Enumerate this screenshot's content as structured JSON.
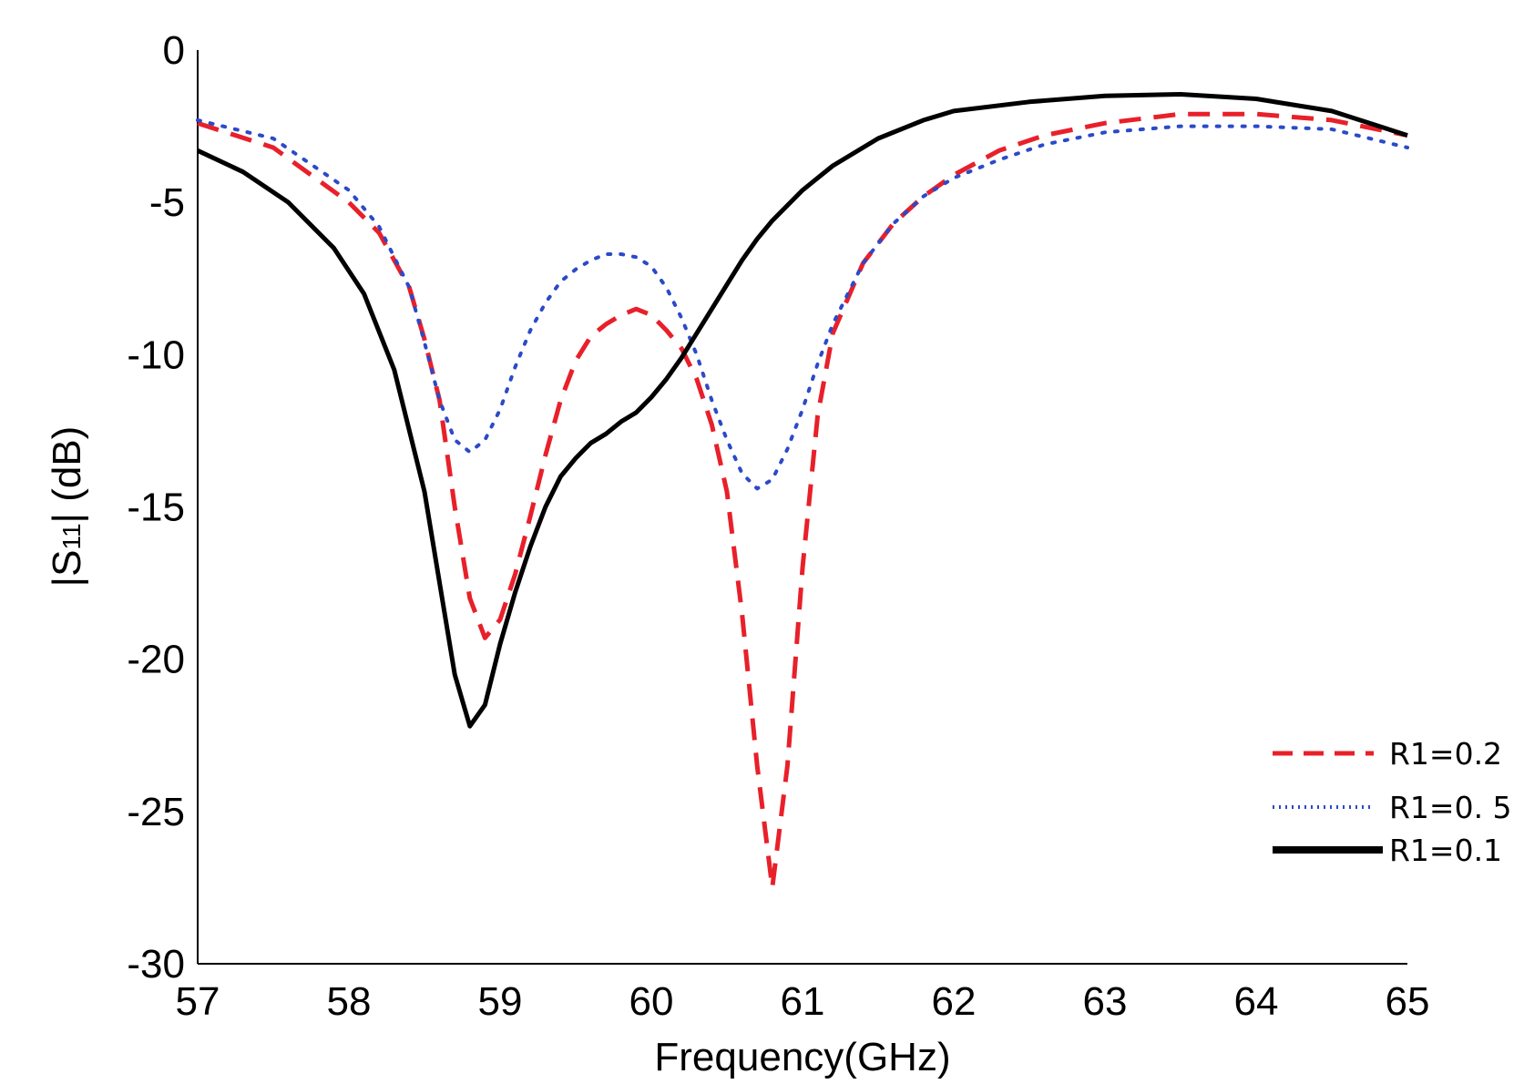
{
  "chart_data": {
    "type": "line",
    "title": "",
    "xlabel": "Frequency(GHz)",
    "ylabel_parts": {
      "before": "|S",
      "sub": "11",
      "after": "| (dB)"
    },
    "xlim": [
      57,
      65
    ],
    "ylim": [
      -30,
      0
    ],
    "x_ticks": [
      "57",
      "58",
      "59",
      "60",
      "61",
      "62",
      "63",
      "64",
      "65"
    ],
    "y_ticks": [
      "0",
      "-5",
      "-10",
      "-15",
      "-20",
      "-25",
      "-30"
    ],
    "legend_position": "bottom-right",
    "series": [
      {
        "name": "R1=0.2",
        "color": "#e8202a",
        "style": "dashed",
        "points": [
          [
            57.0,
            -2.4
          ],
          [
            57.5,
            -3.2
          ],
          [
            58.0,
            -5.0
          ],
          [
            58.2,
            -6.0
          ],
          [
            58.4,
            -7.8
          ],
          [
            58.5,
            -9.5
          ],
          [
            58.6,
            -11.5
          ],
          [
            58.7,
            -15.0
          ],
          [
            58.8,
            -18.0
          ],
          [
            58.9,
            -19.3
          ],
          [
            59.0,
            -18.7
          ],
          [
            59.1,
            -17.2
          ],
          [
            59.2,
            -15.3
          ],
          [
            59.3,
            -13.3
          ],
          [
            59.4,
            -11.5
          ],
          [
            59.5,
            -10.2
          ],
          [
            59.6,
            -9.4
          ],
          [
            59.7,
            -9.0
          ],
          [
            59.8,
            -8.7
          ],
          [
            59.9,
            -8.5
          ],
          [
            60.0,
            -8.7
          ],
          [
            60.1,
            -9.2
          ],
          [
            60.2,
            -9.8
          ],
          [
            60.3,
            -10.8
          ],
          [
            60.4,
            -12.3
          ],
          [
            60.5,
            -14.5
          ],
          [
            60.6,
            -18.5
          ],
          [
            60.7,
            -23.5
          ],
          [
            60.8,
            -27.5
          ],
          [
            60.9,
            -23.5
          ],
          [
            61.0,
            -17.0
          ],
          [
            61.1,
            -12.0
          ],
          [
            61.2,
            -9.3
          ],
          [
            61.4,
            -7.0
          ],
          [
            61.6,
            -5.7
          ],
          [
            61.8,
            -4.8
          ],
          [
            62.0,
            -4.1
          ],
          [
            62.3,
            -3.3
          ],
          [
            62.6,
            -2.8
          ],
          [
            63.0,
            -2.4
          ],
          [
            63.5,
            -2.1
          ],
          [
            64.0,
            -2.1
          ],
          [
            64.5,
            -2.3
          ],
          [
            65.0,
            -2.8
          ]
        ]
      },
      {
        "name": "R1=0. 5",
        "color": "#2b4ac8",
        "style": "dotted",
        "points": [
          [
            57.0,
            -2.3
          ],
          [
            57.5,
            -2.9
          ],
          [
            58.0,
            -4.6
          ],
          [
            58.2,
            -5.8
          ],
          [
            58.4,
            -7.8
          ],
          [
            58.5,
            -9.6
          ],
          [
            58.6,
            -11.5
          ],
          [
            58.7,
            -12.8
          ],
          [
            58.8,
            -13.2
          ],
          [
            58.9,
            -12.8
          ],
          [
            59.0,
            -11.8
          ],
          [
            59.1,
            -10.4
          ],
          [
            59.2,
            -9.2
          ],
          [
            59.3,
            -8.3
          ],
          [
            59.4,
            -7.6
          ],
          [
            59.5,
            -7.2
          ],
          [
            59.6,
            -6.9
          ],
          [
            59.7,
            -6.7
          ],
          [
            59.8,
            -6.7
          ],
          [
            59.9,
            -6.8
          ],
          [
            60.0,
            -7.1
          ],
          [
            60.1,
            -7.8
          ],
          [
            60.2,
            -8.8
          ],
          [
            60.3,
            -10.0
          ],
          [
            60.4,
            -11.5
          ],
          [
            60.5,
            -12.8
          ],
          [
            60.6,
            -13.9
          ],
          [
            60.7,
            -14.4
          ],
          [
            60.8,
            -14.1
          ],
          [
            60.9,
            -13.1
          ],
          [
            61.0,
            -11.8
          ],
          [
            61.1,
            -10.3
          ],
          [
            61.2,
            -9.0
          ],
          [
            61.4,
            -7.0
          ],
          [
            61.6,
            -5.7
          ],
          [
            61.8,
            -4.8
          ],
          [
            62.0,
            -4.2
          ],
          [
            62.3,
            -3.6
          ],
          [
            62.6,
            -3.1
          ],
          [
            63.0,
            -2.7
          ],
          [
            63.5,
            -2.5
          ],
          [
            64.0,
            -2.5
          ],
          [
            64.5,
            -2.6
          ],
          [
            65.0,
            -3.2
          ]
        ]
      },
      {
        "name": "R1=0.1",
        "color": "#000000",
        "style": "solid",
        "points": [
          [
            57.0,
            -3.3
          ],
          [
            57.3,
            -4.0
          ],
          [
            57.6,
            -5.0
          ],
          [
            57.9,
            -6.5
          ],
          [
            58.1,
            -8.0
          ],
          [
            58.3,
            -10.5
          ],
          [
            58.5,
            -14.5
          ],
          [
            58.6,
            -17.5
          ],
          [
            58.7,
            -20.5
          ],
          [
            58.8,
            -22.2
          ],
          [
            58.9,
            -21.5
          ],
          [
            59.0,
            -19.5
          ],
          [
            59.1,
            -17.8
          ],
          [
            59.2,
            -16.3
          ],
          [
            59.3,
            -15.0
          ],
          [
            59.4,
            -14.0
          ],
          [
            59.5,
            -13.4
          ],
          [
            59.6,
            -12.9
          ],
          [
            59.7,
            -12.6
          ],
          [
            59.8,
            -12.2
          ],
          [
            59.9,
            -11.9
          ],
          [
            60.0,
            -11.4
          ],
          [
            60.1,
            -10.8
          ],
          [
            60.2,
            -10.1
          ],
          [
            60.3,
            -9.3
          ],
          [
            60.4,
            -8.5
          ],
          [
            60.5,
            -7.7
          ],
          [
            60.6,
            -6.9
          ],
          [
            60.7,
            -6.2
          ],
          [
            60.8,
            -5.6
          ],
          [
            61.0,
            -4.6
          ],
          [
            61.2,
            -3.8
          ],
          [
            61.5,
            -2.9
          ],
          [
            61.8,
            -2.3
          ],
          [
            62.0,
            -2.0
          ],
          [
            62.5,
            -1.7
          ],
          [
            63.0,
            -1.5
          ],
          [
            63.5,
            -1.45
          ],
          [
            64.0,
            -1.6
          ],
          [
            64.5,
            -2.0
          ],
          [
            65.0,
            -2.8
          ]
        ]
      }
    ]
  }
}
